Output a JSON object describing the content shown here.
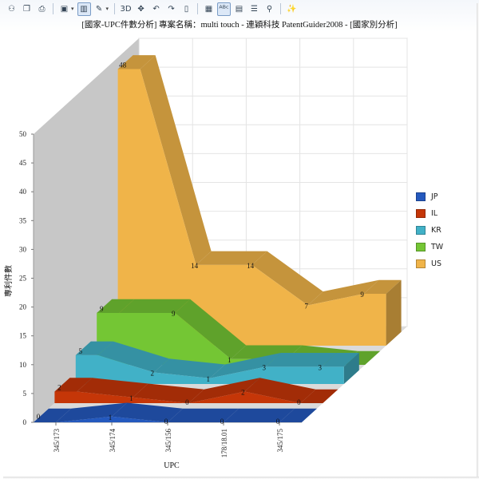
{
  "toolbar": {
    "buttons": [
      {
        "name": "users-icon",
        "glyph": "⚇"
      },
      {
        "name": "copy-icon",
        "glyph": "❐"
      },
      {
        "name": "print-icon",
        "glyph": "⎙"
      },
      {
        "sep": true
      },
      {
        "name": "image-icon",
        "glyph": "▣",
        "drop": true
      },
      {
        "name": "chart-type-icon",
        "glyph": "▥",
        "pressed": true
      },
      {
        "name": "palette-icon",
        "glyph": "✎",
        "drop": true
      },
      {
        "sep": true
      },
      {
        "name": "3d-icon",
        "glyph": "3D"
      },
      {
        "name": "move-icon",
        "glyph": "✥"
      },
      {
        "name": "rotate-left-icon",
        "glyph": "↶"
      },
      {
        "name": "rotate-right-icon",
        "glyph": "↷"
      },
      {
        "name": "book-icon",
        "glyph": "▯"
      },
      {
        "sep": true
      },
      {
        "name": "data-table-icon",
        "glyph": "▦"
      },
      {
        "name": "label-icon",
        "glyph": "ᴬᴮᶜ",
        "pressed": true
      },
      {
        "name": "gridlines-icon",
        "glyph": "▤"
      },
      {
        "name": "legend-icon",
        "glyph": "☰"
      },
      {
        "name": "zoom-icon",
        "glyph": "⚲"
      },
      {
        "sep": true
      },
      {
        "name": "wand-icon",
        "glyph": "✨"
      }
    ]
  },
  "chart_title": "[國家-UPC件數分析] 專案名稱：multi touch - 連穎科技 PatentGuider2008 - [國家別分析]",
  "chart_data": {
    "type": "area",
    "title": "[國家-UPC件數分析] 專案名稱：multi touch - 連穎科技 PatentGuider2008 - [國家別分析]",
    "xlabel": "UPC",
    "ylabel": "專利件數",
    "ylim": [
      0,
      50
    ],
    "yticks": [
      0,
      5,
      10,
      15,
      20,
      25,
      30,
      35,
      40,
      45,
      50
    ],
    "categories": [
      "345/173",
      "345/174",
      "345/156",
      "178/18.01",
      "345/175"
    ],
    "series": [
      {
        "name": "US",
        "color": "#f0b449",
        "values": [
          48,
          14,
          14,
          7,
          9
        ]
      },
      {
        "name": "TW",
        "color": "#74c634",
        "values": [
          9,
          9,
          1,
          1,
          0
        ]
      },
      {
        "name": "KR",
        "color": "#41b1c7",
        "values": [
          5,
          2,
          1,
          3,
          3
        ]
      },
      {
        "name": "IL",
        "color": "#c53608",
        "values": [
          2,
          1,
          0,
          2,
          0
        ]
      },
      {
        "name": "JP",
        "color": "#2459be",
        "values": [
          0,
          1,
          0,
          0,
          0
        ]
      }
    ],
    "legend_position": "right",
    "grid": true
  },
  "legend": [
    {
      "name": "JP",
      "color": "#2459be"
    },
    {
      "name": "IL",
      "color": "#c53608"
    },
    {
      "name": "KR",
      "color": "#41b1c7"
    },
    {
      "name": "TW",
      "color": "#74c634"
    },
    {
      "name": "US",
      "color": "#f0b449"
    }
  ]
}
